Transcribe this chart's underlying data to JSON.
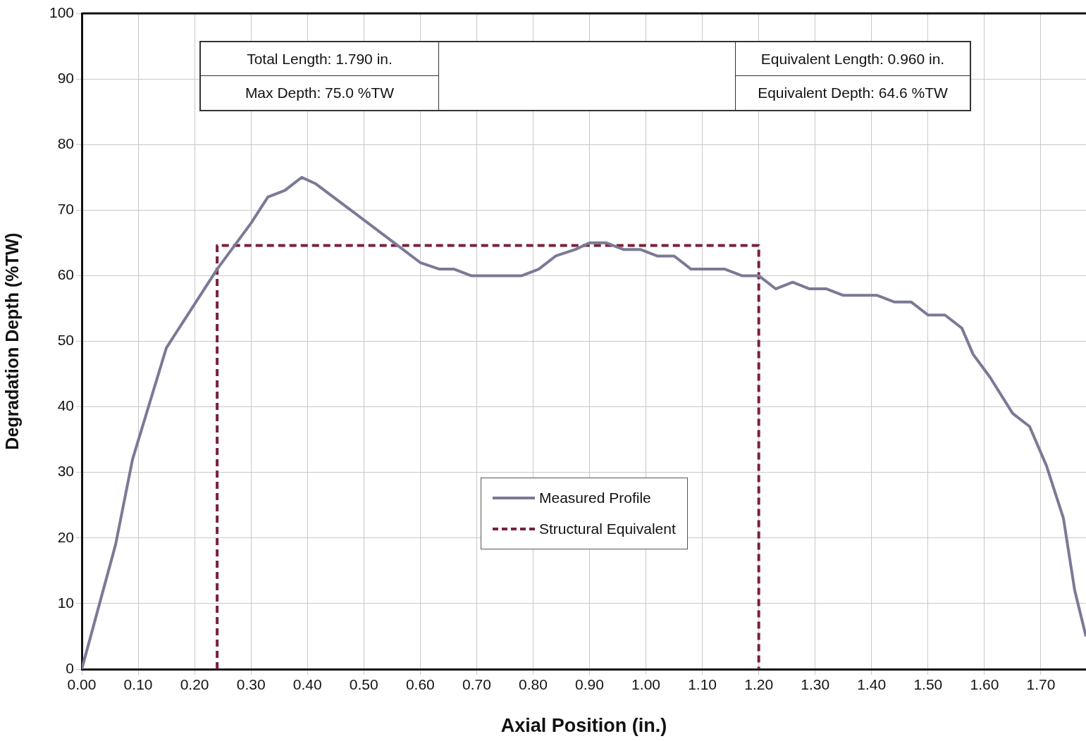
{
  "chart_data": {
    "type": "line",
    "xlabel": "Axial Position (in.)",
    "ylabel": "Degradation Depth (%TW)",
    "xlim": [
      0,
      1.78
    ],
    "ylim": [
      0,
      100
    ],
    "xticks": [
      {
        "value": 0,
        "label": "0.00"
      },
      {
        "value": 0.1,
        "label": "0.10"
      },
      {
        "value": 0.2,
        "label": "0.20"
      },
      {
        "value": 0.3,
        "label": "0.30"
      },
      {
        "value": 0.4,
        "label": "0.40"
      },
      {
        "value": 0.5,
        "label": "0.50"
      },
      {
        "value": 0.6,
        "label": "0.60"
      },
      {
        "value": 0.7,
        "label": "0.70"
      },
      {
        "value": 0.8,
        "label": "0.80"
      },
      {
        "value": 0.9,
        "label": "0.90"
      },
      {
        "value": 1.0,
        "label": "1.00"
      },
      {
        "value": 1.1,
        "label": "1.10"
      },
      {
        "value": 1.2,
        "label": "1.20"
      },
      {
        "value": 1.3,
        "label": "1.30"
      },
      {
        "value": 1.4,
        "label": "1.40"
      },
      {
        "value": 1.5,
        "label": "1.50"
      },
      {
        "value": 1.6,
        "label": "1.60"
      },
      {
        "value": 1.7,
        "label": "1.70"
      }
    ],
    "yticks": [
      0,
      10,
      20,
      30,
      40,
      50,
      60,
      70,
      80,
      90,
      100
    ],
    "grid": true,
    "legend": "bottom",
    "marker": "none",
    "annotations": [
      "Total Length:  1.790 in.",
      "Max Depth:  75.0 %TW",
      "Equivalent Length:  0.960 in.",
      "Equivalent Depth:  64.6 %TW"
    ],
    "series": [
      {
        "name": "Measured Profile",
        "color": "#7a7a96",
        "line_style": "solid",
        "x": [
          0,
          0.06,
          0.09,
          0.15,
          0.24,
          0.3,
          0.33,
          0.36,
          0.39,
          0.415,
          0.554,
          0.6,
          0.634,
          0.66,
          0.69,
          0.78,
          0.81,
          0.84,
          0.875,
          0.9,
          0.93,
          0.96,
          0.99,
          1.02,
          1.05,
          1.08,
          1.14,
          1.17,
          1.2,
          1.23,
          1.26,
          1.29,
          1.32,
          1.35,
          1.41,
          1.44,
          1.47,
          1.5,
          1.53,
          1.56,
          1.58,
          1.61,
          1.65,
          1.68,
          1.71,
          1.74,
          1.76,
          1.78
        ],
        "values": [
          0,
          19,
          32,
          49,
          61,
          68,
          72,
          73,
          75,
          74,
          65,
          62,
          61,
          61,
          60,
          60,
          61,
          63,
          64,
          65,
          65,
          64,
          64,
          63,
          63,
          61,
          61,
          60,
          60,
          58,
          59,
          58,
          58,
          57,
          57,
          56,
          56,
          54,
          54,
          52,
          48,
          44.5,
          39,
          37,
          31,
          23,
          12,
          5
        ]
      },
      {
        "name": "Structural Equivalent",
        "color": "#7b1f3a",
        "line_style": "dashed",
        "x": [
          0.24,
          0.24,
          1.2,
          1.2
        ],
        "values": [
          0,
          64.6,
          64.6,
          0
        ]
      }
    ]
  }
}
